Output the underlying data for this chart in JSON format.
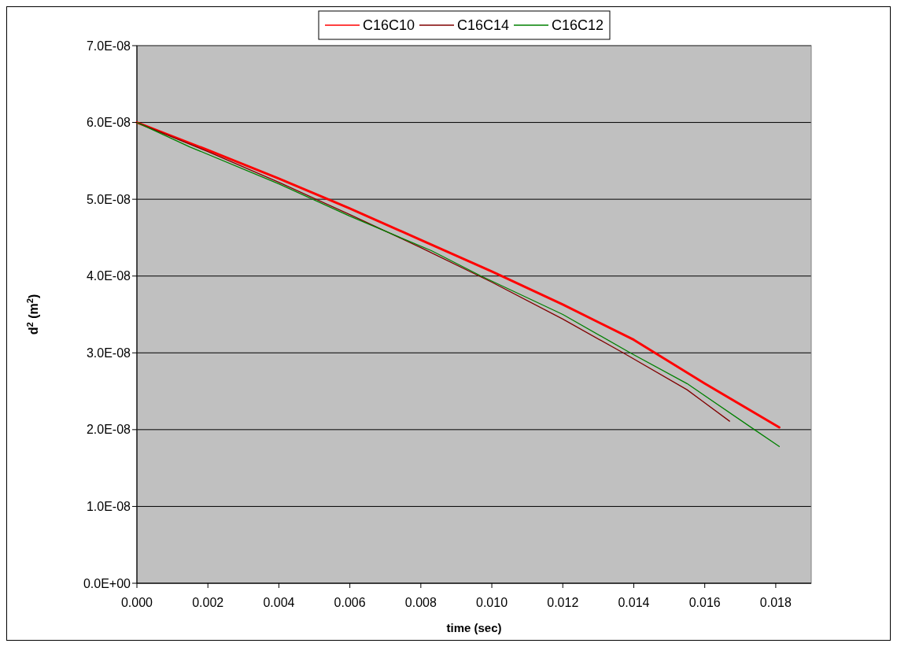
{
  "chart_data": {
    "type": "line",
    "xlabel": "time (sec)",
    "ylabel": "d$^{2}$ (m$^{2}$)",
    "xlim": [
      0,
      0.019
    ],
    "xticks": [
      {
        "value": 0,
        "label": "0.000"
      },
      {
        "value": 0.002,
        "label": "0.002"
      },
      {
        "value": 0.004,
        "label": "0.004"
      },
      {
        "value": 0.006,
        "label": "0.006"
      },
      {
        "value": 0.008,
        "label": "0.008"
      },
      {
        "value": 0.01,
        "label": "0.010"
      },
      {
        "value": 0.012,
        "label": "0.012"
      },
      {
        "value": 0.014,
        "label": "0.014"
      },
      {
        "value": 0.016,
        "label": "0.016"
      },
      {
        "value": 0.018,
        "label": "0.018"
      }
    ],
    "ylim": [
      0,
      7e-08
    ],
    "yticks": [
      {
        "value": 0,
        "label": "0.0E+00"
      },
      {
        "value": 1e-08,
        "label": "1.0E-08"
      },
      {
        "value": 2e-08,
        "label": "2.0E-08"
      },
      {
        "value": 3e-08,
        "label": "3.0E-08"
      },
      {
        "value": 4e-08,
        "label": "4.0E-08"
      },
      {
        "value": 5e-08,
        "label": "5.0E-08"
      },
      {
        "value": 6e-08,
        "label": "6.0E-08"
      },
      {
        "value": 7e-08,
        "label": "7.0E-08"
      }
    ],
    "grid": "y",
    "legend": "top",
    "marker": "none",
    "line_style": "solid",
    "series": [
      {
        "name": "C16C10",
        "color": "#ff0000",
        "x": [
          0,
          0.002,
          0.004,
          0.006,
          0.008,
          0.01,
          0.012,
          0.014,
          0.016,
          0.0181
        ],
        "values": [
          6e-08,
          5.64e-08,
          5.27e-08,
          4.88e-08,
          4.47e-08,
          4.06e-08,
          3.63e-08,
          3.17e-08,
          2.6e-08,
          2.03e-08
        ]
      },
      {
        "name": "C16C14",
        "color": "#800000",
        "x": [
          0,
          0.002,
          0.004,
          0.006,
          0.008,
          0.01,
          0.012,
          0.0137,
          0.0155,
          0.0167
        ],
        "values": [
          6e-08,
          5.62e-08,
          5.22e-08,
          4.8e-08,
          4.37e-08,
          3.92e-08,
          3.44e-08,
          3e-08,
          2.52e-08,
          2.11e-08
        ]
      },
      {
        "name": "C16C12",
        "color": "#008000",
        "x": [
          0,
          0.0015,
          0.004,
          0.006,
          0.0083,
          0.0097,
          0.012,
          0.0139,
          0.0155,
          0.0174,
          0.0181
        ],
        "values": [
          6e-08,
          5.68e-08,
          5.2e-08,
          4.78e-08,
          4.33e-08,
          4e-08,
          3.5e-08,
          3e-08,
          2.6e-08,
          2e-08,
          1.78e-08
        ]
      }
    ]
  }
}
